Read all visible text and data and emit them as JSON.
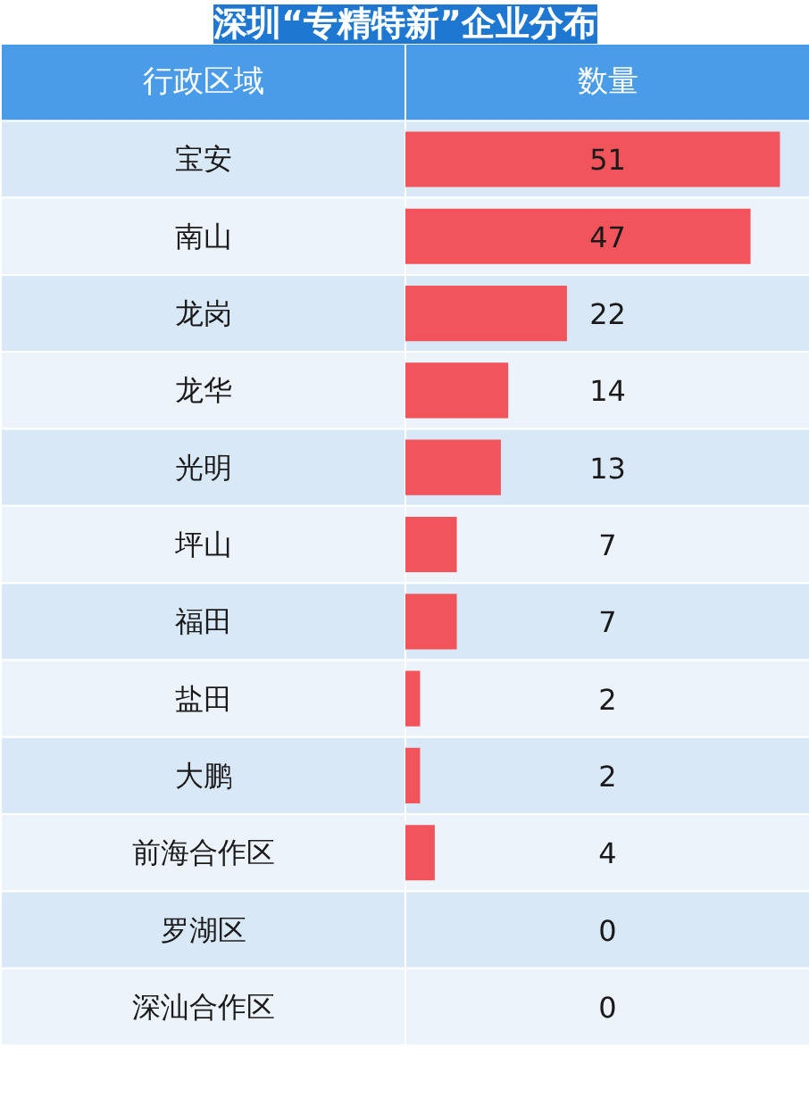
{
  "chart_data": {
    "type": "bar",
    "orientation": "horizontal",
    "title": "深圳“专精特新”企业分布",
    "ylabel": "行政区域",
    "xlabel": "数量",
    "categories": [
      "宝安",
      "南山",
      "龙岗",
      "龙华",
      "光明",
      "坪山",
      "福田",
      "盐田",
      "大鹏",
      "前海合作区",
      "罗湖区",
      "深汕合作区"
    ],
    "values": [
      51,
      47,
      22,
      14,
      13,
      7,
      7,
      2,
      2,
      4,
      0,
      0
    ],
    "color": "#f2545b",
    "data_labels": true
  }
}
